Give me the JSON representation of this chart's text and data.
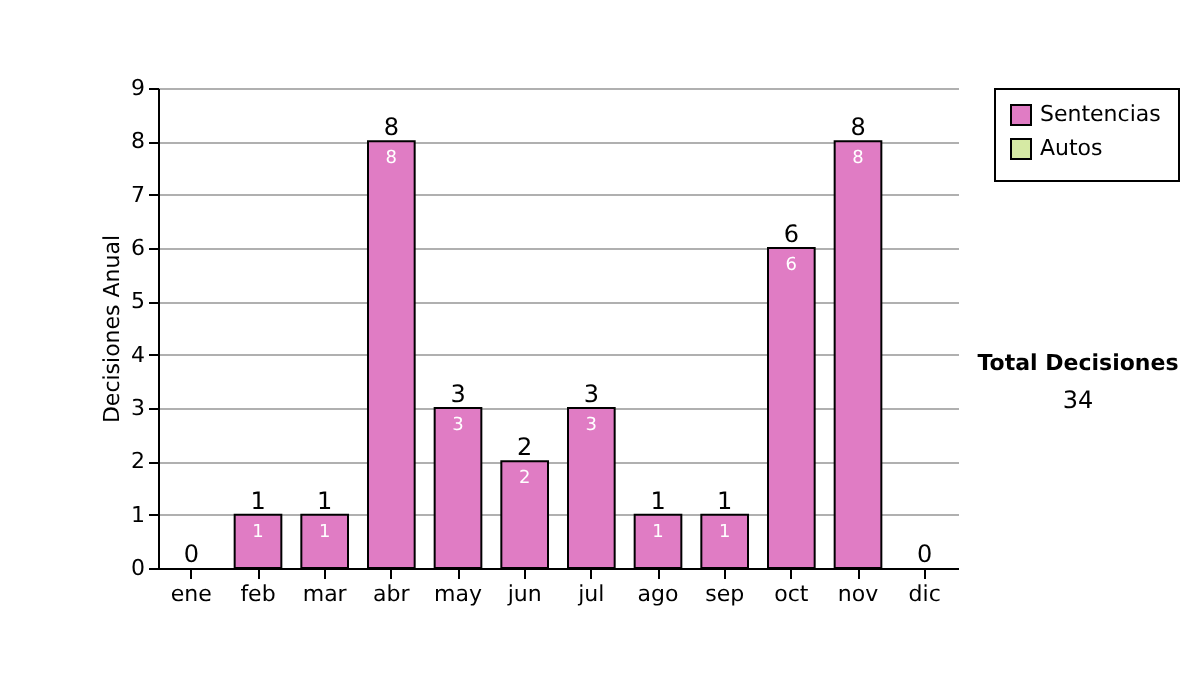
{
  "chart_data": {
    "type": "bar",
    "stacked": true,
    "ylabel": "Decisiones Anual",
    "categories": [
      "ene",
      "feb",
      "mar",
      "abr",
      "may",
      "jun",
      "jul",
      "ago",
      "sep",
      "oct",
      "nov",
      "dic"
    ],
    "series": [
      {
        "name": "Sentencias",
        "color": "#e07cc4",
        "values": [
          0,
          1,
          1,
          8,
          3,
          2,
          3,
          1,
          1,
          6,
          8,
          0
        ],
        "value_labels": [
          null,
          "1",
          "1",
          "8",
          "3",
          "2",
          "3",
          "1",
          "1",
          "6",
          "8",
          null
        ]
      },
      {
        "name": "Autos",
        "color": "#d6eaa4",
        "values": [
          0,
          0,
          0,
          0,
          0,
          0,
          0,
          0,
          0,
          0,
          0,
          0
        ]
      }
    ],
    "totals": [
      "0",
      "1",
      "1",
      "8",
      "3",
      "2",
      "3",
      "1",
      "1",
      "6",
      "8",
      "0"
    ],
    "ylim": [
      0,
      9
    ],
    "yticks": [
      0,
      1,
      2,
      3,
      4,
      5,
      6,
      7,
      8,
      9
    ],
    "grid": "y",
    "legend": "top right",
    "annotations": [
      "Total Decisiones",
      "34"
    ]
  }
}
